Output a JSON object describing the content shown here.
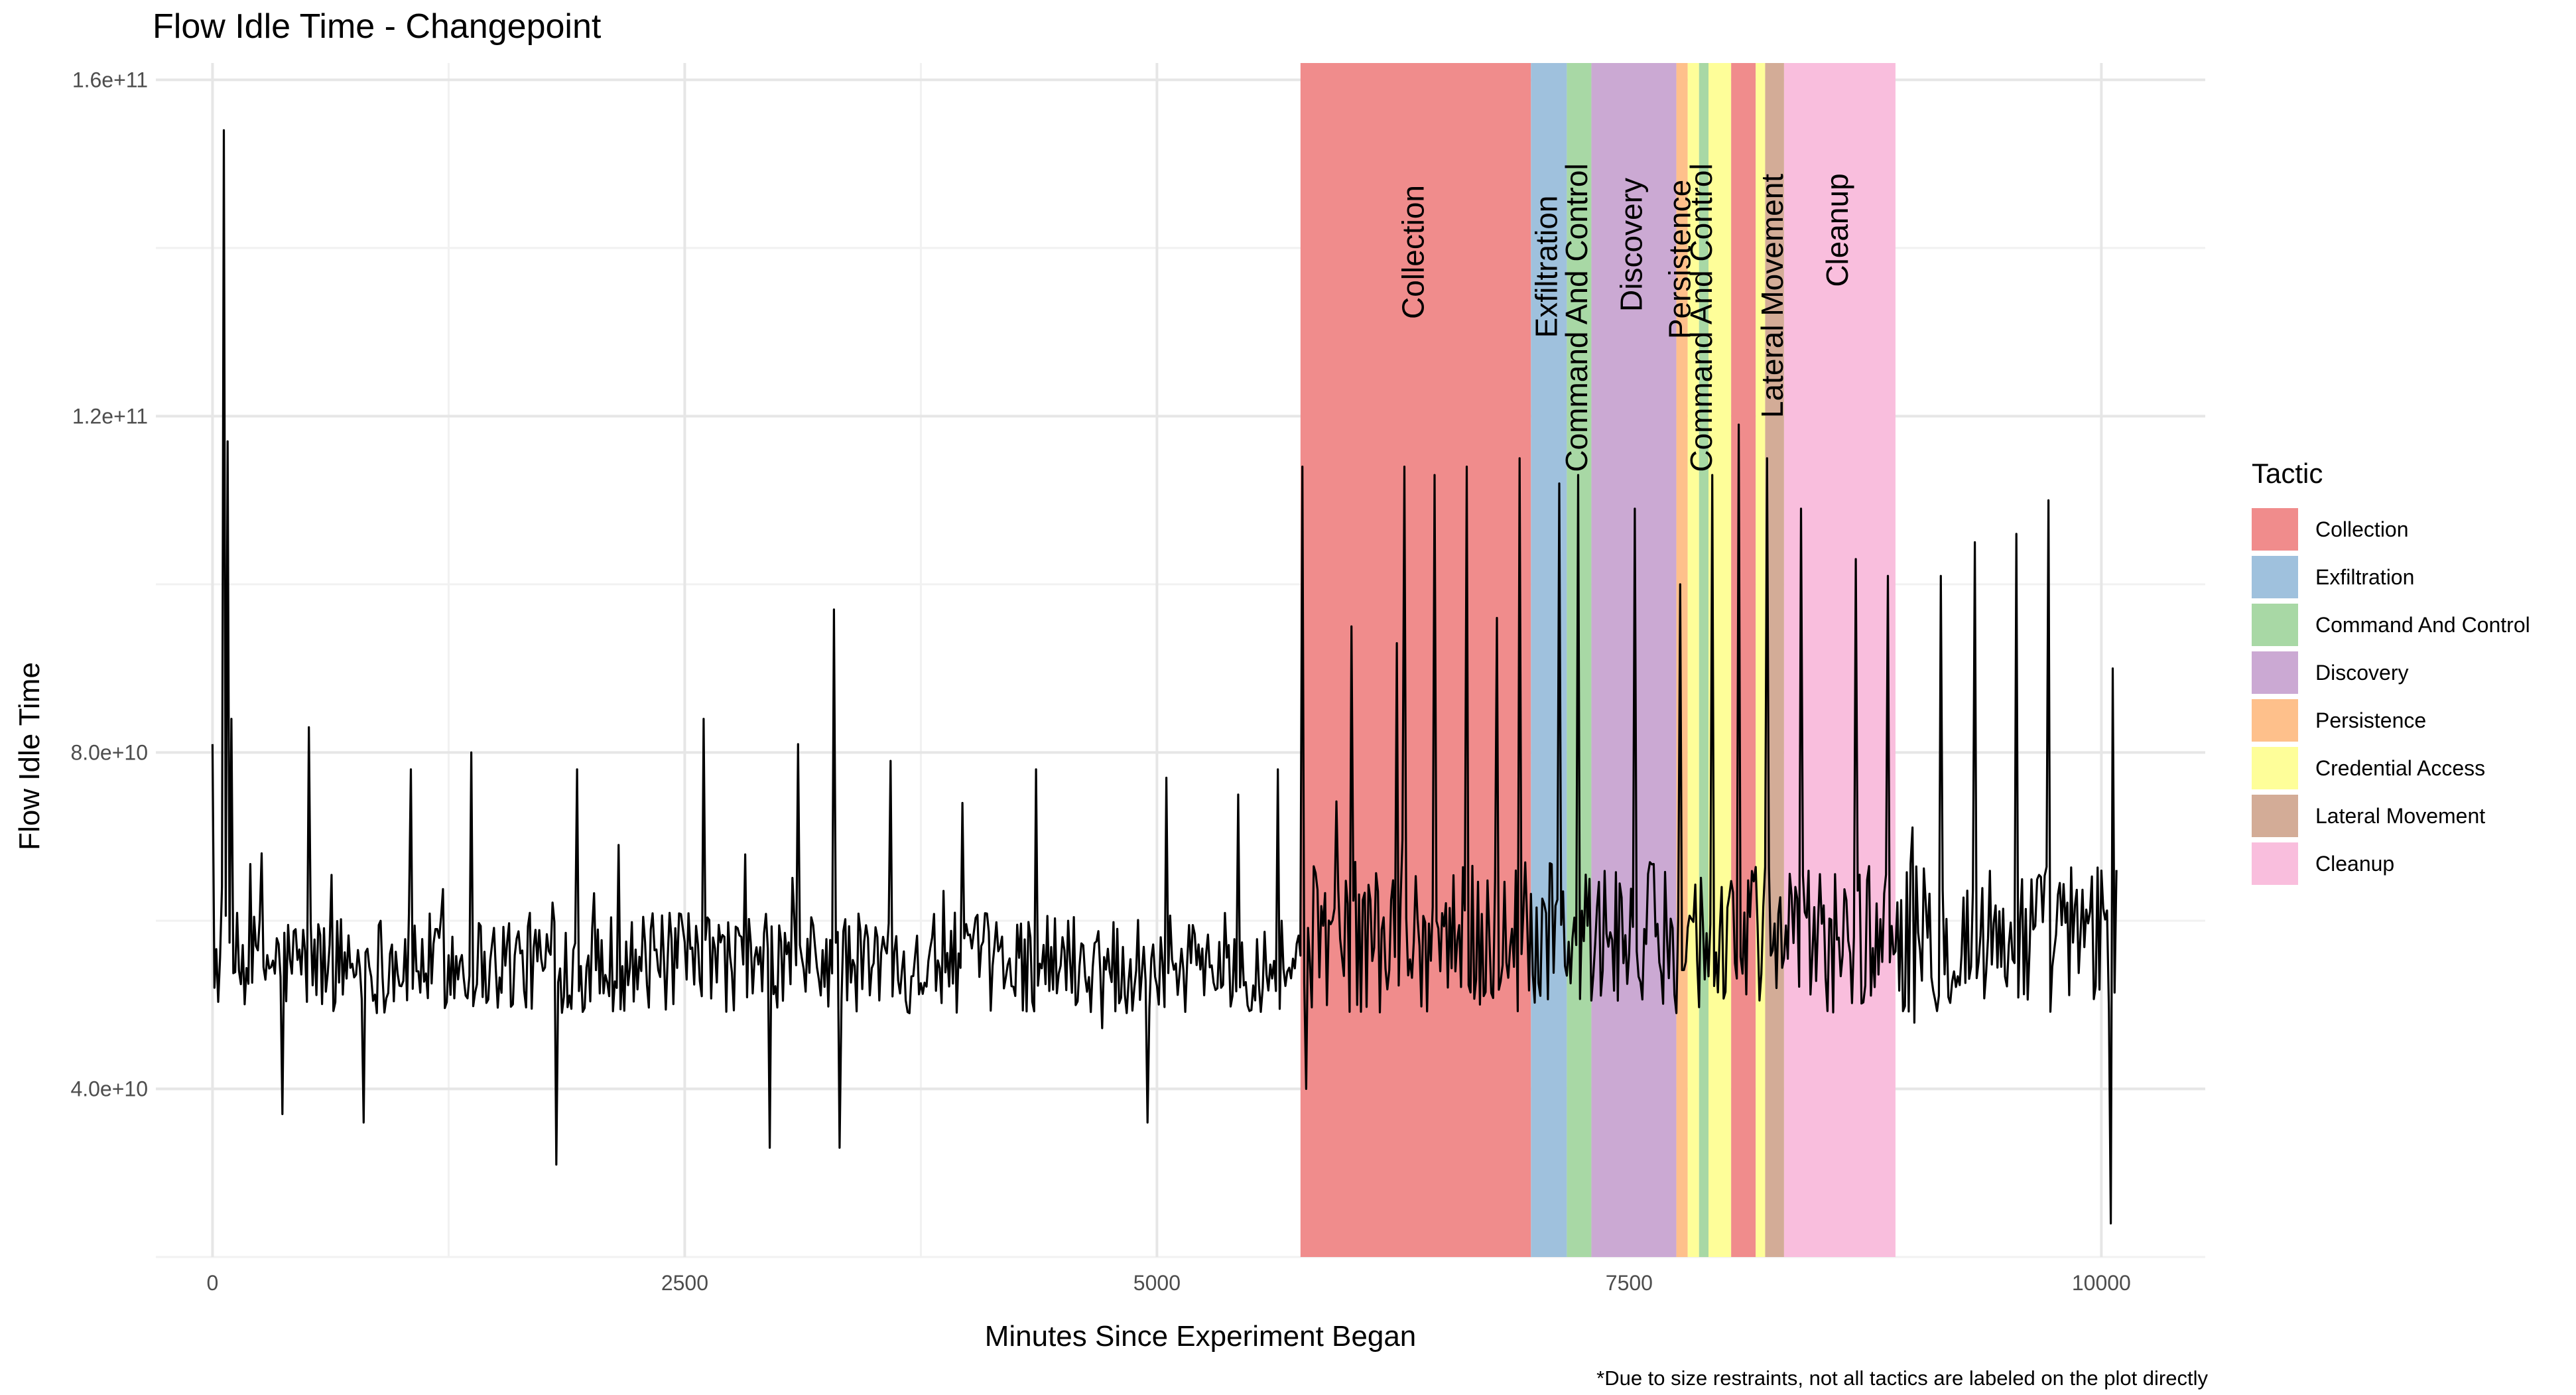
{
  "chart_data": {
    "type": "line",
    "title": "Flow Idle Time - Changepoint",
    "xlabel": "Minutes Since Experiment Began",
    "ylabel": "Flow Idle Time",
    "caption": "*Due to size restraints, not all tactics are labeled on the plot directly",
    "xlim": [
      -300,
      10550
    ],
    "ylim": [
      20000000000,
      162000000000
    ],
    "x_ticks": [
      0,
      2500,
      5000,
      7500,
      10000
    ],
    "x_tick_labels": [
      "0",
      "2500",
      "5000",
      "7500",
      "10000"
    ],
    "y_ticks": [
      40000000000,
      80000000000,
      120000000000,
      160000000000
    ],
    "y_tick_labels": [
      "4.0e+10",
      "8.0e+10",
      "1.2e+11",
      "1.6e+11"
    ],
    "grid": true,
    "legend": {
      "title": "Tactic",
      "position": "right",
      "entries": [
        {
          "label": "Collection",
          "color": "#F08C8C"
        },
        {
          "label": "Exfiltration",
          "color": "#9FC1DD"
        },
        {
          "label": "Command And Control",
          "color": "#A8D8A5"
        },
        {
          "label": "Discovery",
          "color": "#CBA9D3"
        },
        {
          "label": "Persistence",
          "color": "#FEC08B"
        },
        {
          "label": "Credential Access",
          "color": "#FEFE99"
        },
        {
          "label": "Lateral Movement",
          "color": "#D3AC97"
        },
        {
          "label": "Cleanup",
          "color": "#F9BEDD"
        }
      ]
    },
    "tactic_regions": [
      {
        "tactic": "Collection",
        "start": 5760,
        "end": 6980,
        "label": "Collection"
      },
      {
        "tactic": "Exfiltration",
        "start": 6980,
        "end": 7170,
        "label": "Exfiltration"
      },
      {
        "tactic": "Command And Control",
        "start": 7170,
        "end": 7300,
        "label": "Command And Control"
      },
      {
        "tactic": "Discovery",
        "start": 7300,
        "end": 7750,
        "label": "Discovery"
      },
      {
        "tactic": "Persistence",
        "start": 7750,
        "end": 7810,
        "label": "Persistence"
      },
      {
        "tactic": "Credential Access",
        "start": 7810,
        "end": 7870,
        "label": ""
      },
      {
        "tactic": "Command And Control",
        "start": 7870,
        "end": 7920,
        "label": "Command And Control"
      },
      {
        "tactic": "Credential Access",
        "start": 7920,
        "end": 8040,
        "label": ""
      },
      {
        "tactic": "Collection",
        "start": 8040,
        "end": 8170,
        "label": ""
      },
      {
        "tactic": "Credential Access",
        "start": 8170,
        "end": 8220,
        "label": ""
      },
      {
        "tactic": "Lateral Movement",
        "start": 8220,
        "end": 8320,
        "label": "Lateral Movement"
      },
      {
        "tactic": "Cleanup",
        "start": 8320,
        "end": 8910,
        "label": "Cleanup"
      }
    ],
    "series": [
      {
        "color": "#000000",
        "baseline_segments": [
          {
            "x_start": 0,
            "x_end": 5760,
            "median": 55000000000,
            "spread": 6000000000
          },
          {
            "x_start": 5760,
            "x_end": 10080,
            "median": 58000000000,
            "spread": 9000000000
          }
        ],
        "spikes": [
          [
            0,
            81000000000
          ],
          [
            60,
            154000000000
          ],
          [
            75,
            117000000000
          ],
          [
            100,
            84000000000
          ],
          [
            260,
            68000000000
          ],
          [
            370,
            37000000000
          ],
          [
            510,
            83000000000
          ],
          [
            800,
            36000000000
          ],
          [
            1050,
            78000000000
          ],
          [
            1370,
            80000000000
          ],
          [
            1820,
            31000000000
          ],
          [
            1930,
            78000000000
          ],
          [
            2150,
            69000000000
          ],
          [
            2600,
            84000000000
          ],
          [
            2950,
            33000000000
          ],
          [
            3100,
            81000000000
          ],
          [
            3290,
            97000000000
          ],
          [
            3320,
            33000000000
          ],
          [
            3590,
            79000000000
          ],
          [
            3970,
            74000000000
          ],
          [
            4360,
            78000000000
          ],
          [
            4950,
            36000000000
          ],
          [
            5050,
            77000000000
          ],
          [
            5430,
            75000000000
          ],
          [
            5640,
            78000000000
          ],
          [
            5770,
            114000000000
          ],
          [
            5790,
            40000000000
          ],
          [
            6030,
            95000000000
          ],
          [
            6270,
            93000000000
          ],
          [
            6310,
            114000000000
          ],
          [
            6470,
            113000000000
          ],
          [
            6640,
            114000000000
          ],
          [
            6800,
            96000000000
          ],
          [
            6920,
            115000000000
          ],
          [
            7130,
            112000000000
          ],
          [
            7230,
            113000000000
          ],
          [
            7530,
            109000000000
          ],
          [
            7770,
            100000000000
          ],
          [
            7940,
            113000000000
          ],
          [
            8080,
            119000000000
          ],
          [
            8230,
            115000000000
          ],
          [
            8410,
            109000000000
          ],
          [
            8700,
            103000000000
          ],
          [
            8870,
            101000000000
          ],
          [
            9150,
            101000000000
          ],
          [
            9330,
            105000000000
          ],
          [
            9550,
            106000000000
          ],
          [
            9720,
            110000000000
          ],
          [
            10050,
            24000000000
          ],
          [
            10060,
            90000000000
          ]
        ]
      }
    ]
  }
}
